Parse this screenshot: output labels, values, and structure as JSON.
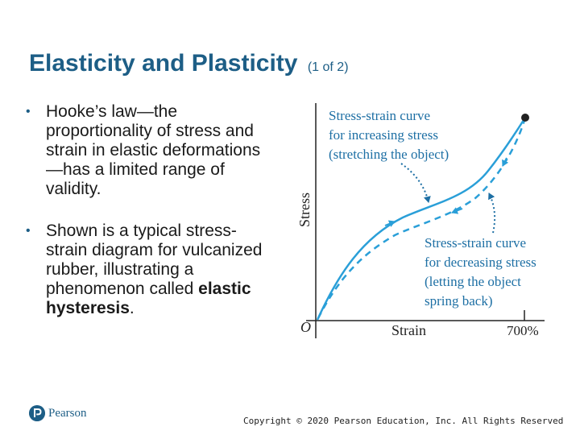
{
  "slide": {
    "title": "Elasticity and Plasticity",
    "title_suffix": "(1 of 2)"
  },
  "bullets": [
    {
      "text": "Hooke’s law—the proportionality of stress and strain in elastic deformations—has a limited range of validity."
    },
    {
      "text_before": "Shown is a typical stress-strain diagram for vulcanized rubber, illustrating a phenomenon called ",
      "emphasis": "elastic hysteresis",
      "text_after": "."
    }
  ],
  "figure": {
    "y_axis_label": "Stress",
    "x_axis_label": "Strain",
    "origin_label": "O",
    "x_max_label": "700%",
    "loading_annotation": [
      "Stress-strain curve",
      "for increasing stress",
      "(stretching the object)"
    ],
    "unloading_annotation": [
      "Stress-strain curve",
      "for decreasing stress",
      "(letting the object",
      "spring back)"
    ],
    "colors": {
      "curve": "#2a9fd8",
      "annotation_text": "#1d6fa4",
      "axis": "#222222"
    }
  },
  "footer": {
    "logo_text": "Pearson",
    "copyright": "Copyright © 2020 Pearson Education, Inc. All Rights Reserved"
  },
  "colors": {
    "title": "#1d5e86",
    "bullet_marker": "#1d5e86"
  }
}
